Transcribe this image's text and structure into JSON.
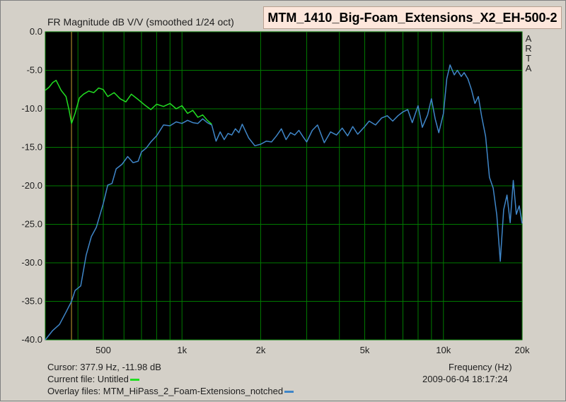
{
  "app": {
    "plot_title": "FR Magnitude dB V/V (smoothed 1/24 oct)",
    "measurement_name": "MTM_1410_Big-Foam_Extensions_X2_EH-500-2",
    "side_label": [
      "A",
      "R",
      "T",
      "A"
    ],
    "cursor_text": "Cursor: 377.9 Hz, -11.98 dB",
    "current_file_label": "Current file: Untitled",
    "overlay_files_label": "Overlay files: MTM_HiPass_2_Foam-Extensions_notched",
    "date_text": "2009-06-04  18:17:24",
    "colors": {
      "plot_bg": "#000000",
      "grid": "#007a00",
      "current": "#22dd22",
      "overlay": "#3f86c8",
      "cursor": "#c8a030"
    }
  },
  "chart_data": {
    "type": "line",
    "xlabel": "Frequency (Hz)",
    "ylabel": "FR Magnitude dB V/V (smoothed 1/24 oct)",
    "xscale": "log",
    "xlim": [
      300,
      20000
    ],
    "ylim": [
      -40,
      0
    ],
    "x_tick_labels": [
      {
        "v": 500,
        "label": "500"
      },
      {
        "v": 1000,
        "label": "1k"
      },
      {
        "v": 2000,
        "label": "2k"
      },
      {
        "v": 5000,
        "label": "5k"
      },
      {
        "v": 10000,
        "label": "10k"
      },
      {
        "v": 20000,
        "label": "20k"
      }
    ],
    "x_grid": [
      300,
      400,
      500,
      600,
      700,
      800,
      900,
      1000,
      2000,
      3000,
      4000,
      5000,
      6000,
      7000,
      8000,
      9000,
      10000,
      20000
    ],
    "y_ticks": [
      {
        "v": 0,
        "label": "0.0"
      },
      {
        "v": -5,
        "label": "-5.0"
      },
      {
        "v": -10,
        "label": "-10.0"
      },
      {
        "v": -15,
        "label": "-15.0"
      },
      {
        "v": -20,
        "label": "-20.0"
      },
      {
        "v": -25,
        "label": "-25.0"
      },
      {
        "v": -30,
        "label": "-30.0"
      },
      {
        "v": -35,
        "label": "-35.0"
      },
      {
        "v": -40,
        "label": "-40.0"
      }
    ],
    "grid": true,
    "cursor": {
      "x": 377.9,
      "y": -11.98
    },
    "series": [
      {
        "name": "Untitled",
        "role": "current",
        "x": [
          300,
          310,
          320,
          330,
          345,
          360,
          370,
          378,
          390,
          405,
          420,
          440,
          460,
          480,
          500,
          520,
          550,
          580,
          610,
          640,
          680,
          720,
          760,
          800,
          850,
          900,
          950,
          1000,
          1050,
          1100,
          1150,
          1200,
          1250,
          1300
        ],
        "y": [
          -7.6,
          -7.2,
          -6.6,
          -6.3,
          -7.6,
          -8.4,
          -10.2,
          -11.9,
          -10.6,
          -8.6,
          -8.1,
          -7.7,
          -7.9,
          -7.3,
          -7.5,
          -8.4,
          -7.9,
          -8.7,
          -9.1,
          -8.1,
          -8.8,
          -9.5,
          -10.1,
          -9.4,
          -9.7,
          -9.3,
          -10.0,
          -9.6,
          -10.6,
          -10.2,
          -11.1,
          -10.8,
          -11.5,
          -12.0
        ]
      },
      {
        "name": "MTM_HiPass_2_Foam-Extensions_notched",
        "role": "overlay",
        "x": [
          300,
          320,
          340,
          360,
          378,
          390,
          410,
          430,
          450,
          470,
          500,
          520,
          540,
          560,
          590,
          620,
          650,
          680,
          700,
          730,
          760,
          800,
          850,
          900,
          950,
          1000,
          1050,
          1100,
          1150,
          1200,
          1250,
          1300,
          1350,
          1400,
          1450,
          1500,
          1550,
          1600,
          1650,
          1700,
          1800,
          1900,
          2000,
          2100,
          2200,
          2300,
          2400,
          2500,
          2600,
          2700,
          2800,
          2900,
          3000,
          3150,
          3300,
          3500,
          3700,
          3900,
          4100,
          4300,
          4500,
          4700,
          5000,
          5200,
          5500,
          5800,
          6100,
          6400,
          6700,
          7000,
          7300,
          7600,
          8000,
          8300,
          8700,
          9000,
          9300,
          9600,
          10000,
          10300,
          10600,
          11000,
          11300,
          11700,
          12000,
          12400,
          12800,
          13200,
          13600,
          14000,
          14500,
          15000,
          15500,
          16000,
          16500,
          17000,
          17500,
          18000,
          18500,
          19000,
          19500,
          20000
        ],
        "y": [
          -40.0,
          -38.8,
          -38.0,
          -36.4,
          -35.0,
          -33.6,
          -33.0,
          -29.0,
          -26.6,
          -25.4,
          -22.3,
          -19.9,
          -19.7,
          -17.8,
          -17.2,
          -16.2,
          -17.0,
          -16.8,
          -15.6,
          -15.1,
          -14.3,
          -13.5,
          -12.1,
          -12.2,
          -11.7,
          -11.9,
          -11.5,
          -11.8,
          -11.9,
          -11.3,
          -11.8,
          -12.1,
          -14.2,
          -13.0,
          -14.0,
          -13.2,
          -13.4,
          -12.6,
          -13.1,
          -12.0,
          -13.8,
          -14.8,
          -14.6,
          -14.2,
          -14.3,
          -13.5,
          -12.6,
          -14.0,
          -13.1,
          -13.4,
          -12.8,
          -13.6,
          -14.3,
          -12.8,
          -12.1,
          -14.4,
          -13.0,
          -13.4,
          -12.5,
          -13.5,
          -12.3,
          -13.3,
          -12.3,
          -11.6,
          -12.1,
          -11.2,
          -10.9,
          -11.6,
          -10.9,
          -10.4,
          -10.1,
          -11.8,
          -9.6,
          -12.4,
          -10.8,
          -8.7,
          -11.3,
          -13.1,
          -10.6,
          -6.1,
          -4.3,
          -5.6,
          -5.0,
          -5.8,
          -5.3,
          -6.1,
          -7.5,
          -9.3,
          -8.4,
          -11.0,
          -13.6,
          -18.9,
          -20.3,
          -23.8,
          -29.8,
          -23.1,
          -21.2,
          -24.8,
          -19.3,
          -23.7,
          -22.6,
          -24.9
        ]
      }
    ]
  }
}
